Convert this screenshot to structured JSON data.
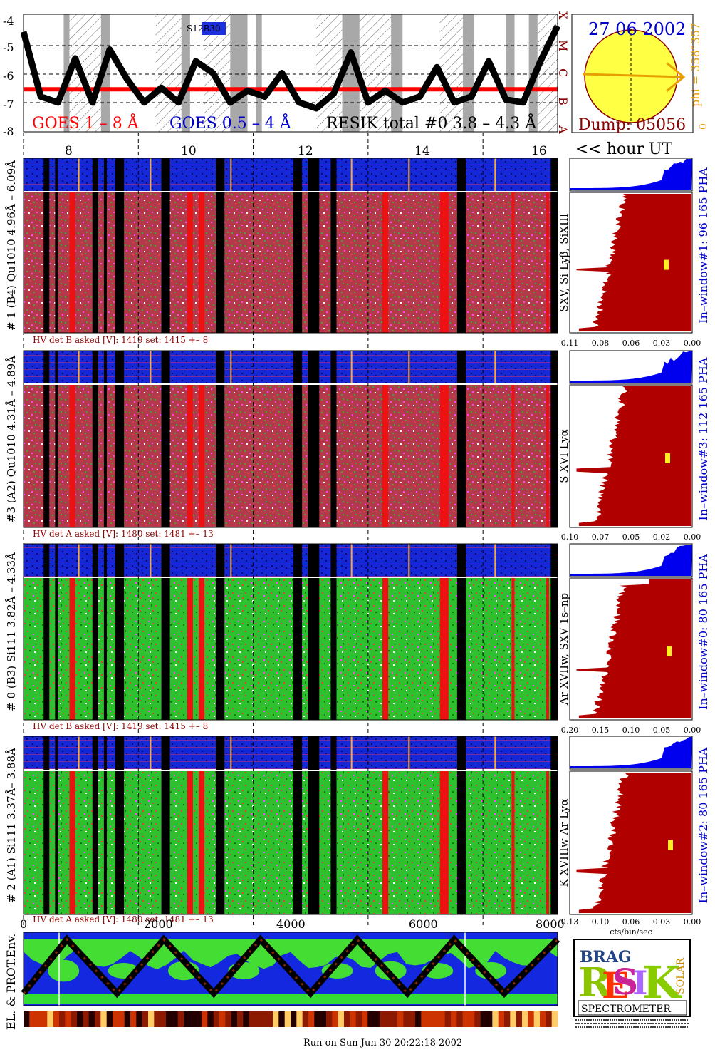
{
  "goes": {
    "y_ticks": [
      "-4",
      "-5",
      "-6",
      "-7",
      "-8"
    ],
    "class_labels": [
      "X",
      "M",
      "C",
      "B",
      "A"
    ],
    "label_goes1": "GOES 1 – 8 Å",
    "label_goes2": "GOES 0.5 – 4 Å",
    "label_resik": "RESIK total #0 3.8 – 4.3 Å",
    "marker": "S12B30",
    "x_ticks": [
      "8",
      "10",
      "12",
      "14",
      "16"
    ],
    "hour_label": "<< hour UT"
  },
  "sun": {
    "date": "27 06 2002",
    "dump": "Dump: 05056",
    "phi": "phi = 358°357",
    "zero": "0"
  },
  "panels": [
    {
      "left_label": "# 1 (B4) Qu1010 4.96Å – 6.09Å",
      "line_label": "SXV, Si Lyβ, SiXIII",
      "window_label": "In–window#1:  96 165  PHA",
      "hv": "HV det B asked [V]:  1419 set:  1415  +–   8",
      "spec_ticks": [
        "0.11",
        "0.08",
        "0.06",
        "0.03",
        "0.00"
      ]
    },
    {
      "left_label": "#3 (A2) Qu1010  4.31Å – 4.89Å",
      "line_label": "S XVI Lyα",
      "window_label": "In–window#3:  112 165  PHA",
      "hv": "HV det A asked [V]:  1480 set:  1481  +–   13",
      "spec_ticks": [
        "0.10",
        "0.07",
        "0.05",
        "0.02",
        "0.00"
      ]
    },
    {
      "left_label": "# 0 (B3) Si111  3.82Å – 4.33Å",
      "line_label": "Ar XVIIw, SXV 1s–np",
      "window_label": "In–window#0:  80 165  PHA",
      "hv": "HV det B asked [V]:  1419 set:  1415  +–   8",
      "spec_ticks": [
        "0.20",
        "0.15",
        "0.10",
        "0.05",
        "0.00"
      ]
    },
    {
      "left_label": "# 2 (A1) Si111  3.37Å– 3.88Å",
      "line_label": "K XVIIIw  Ar Lyα",
      "window_label": "In–window#2:  80 165  PHA",
      "hv": "HV det A asked [V]:  1480 set:  1481  +–   13",
      "spec_ticks": [
        "0.13",
        "0.10",
        "0.06",
        "0.03",
        "0.00"
      ]
    }
  ],
  "spec_xlabel": "cts/bin/sec",
  "env": {
    "label": "EL. & PROT.Env.",
    "x_ticks": [
      "0",
      "2000",
      "4000",
      "6000",
      "8000"
    ]
  },
  "logo": {
    "brag": "BRAG",
    "resik": "RESIK",
    "solar": "SOLAR",
    "spectrometer": "SPECTROMETER"
  },
  "footer": "Run on Sun Jun 30 20:22:18 2002",
  "colors": {
    "goes1": "#ff0000",
    "goes2": "#0000cc",
    "label_dark": "#8b0000",
    "orange": "#e8a000",
    "spectrum": "#b00000",
    "pha": "#0000ee",
    "sun": "#ffff44"
  },
  "chart_data": [
    {
      "type": "line",
      "title": "",
      "xlabel": "<< hour UT",
      "ylabel": "",
      "xlim": [
        7.0,
        16.3
      ],
      "ylim": [
        -8,
        -4
      ],
      "x_ticks": [
        8,
        10,
        12,
        14,
        16
      ],
      "series": [
        {
          "name": "GOES 1 – 8 Å",
          "x": [
            7.0,
            7.3,
            7.6,
            7.9,
            8.2,
            8.5,
            8.8,
            9.1,
            9.4,
            9.7,
            10.0,
            10.3,
            10.6,
            10.9,
            11.2,
            11.5,
            11.8,
            12.1,
            12.4,
            12.7,
            13.0,
            13.3,
            13.6,
            13.9,
            14.2,
            14.5,
            14.8,
            15.1,
            15.4,
            15.7,
            16.0,
            16.3
          ],
          "y": [
            -6.55,
            -6.55,
            -6.55,
            -6.55,
            -6.55,
            -6.55,
            -6.55,
            -6.55,
            -6.55,
            -6.55,
            -6.55,
            -6.55,
            -6.55,
            -6.55,
            -6.55,
            -6.55,
            -6.55,
            -6.55,
            -6.55,
            -6.55,
            -6.55,
            -6.55,
            -6.55,
            -6.55,
            -6.55,
            -6.55,
            -6.55,
            -6.55,
            -6.55,
            -6.55,
            -6.55,
            -6.55
          ]
        },
        {
          "name": "RESIK total #0 3.8 – 4.3 Å",
          "x": [
            7.0,
            7.3,
            7.6,
            7.9,
            8.2,
            8.5,
            8.8,
            9.1,
            9.4,
            9.7,
            10.0,
            10.3,
            10.6,
            10.9,
            11.2,
            11.5,
            11.8,
            12.1,
            12.4,
            12.7,
            13.0,
            13.3,
            13.6,
            13.9,
            14.2,
            14.5,
            14.8,
            15.1,
            15.4,
            15.7,
            16.0,
            16.3
          ],
          "y": [
            -4.6,
            -6.8,
            -7.0,
            -5.5,
            -7.0,
            -5.2,
            -6.2,
            -7.0,
            -6.5,
            -7.0,
            -5.6,
            -6.0,
            -7.0,
            -6.6,
            -6.8,
            -6.0,
            -7.0,
            -7.2,
            -6.7,
            -5.3,
            -7.0,
            -6.6,
            -7.0,
            -6.8,
            -5.8,
            -7.0,
            -6.8,
            -5.6,
            -6.9,
            -7.0,
            -5.6,
            -4.4
          ]
        }
      ]
    },
    {
      "type": "line",
      "title": "EL. & PROT.Env.",
      "xlabel": "",
      "ylabel": "EL. & PROT.Env.",
      "xlim": [
        0,
        8000
      ],
      "x_ticks": [
        0,
        2000,
        4000,
        6000,
        8000
      ],
      "series": [
        {
          "name": "",
          "x": [
            0,
            650,
            1400,
            2100,
            2850,
            3550,
            4300,
            5000,
            5750,
            6450,
            7200,
            8000
          ],
          "y": [
            0.1,
            1.0,
            0.1,
            1.0,
            0.1,
            1.0,
            0.1,
            1.0,
            0.1,
            1.0,
            0.1,
            1.0
          ]
        }
      ]
    }
  ]
}
